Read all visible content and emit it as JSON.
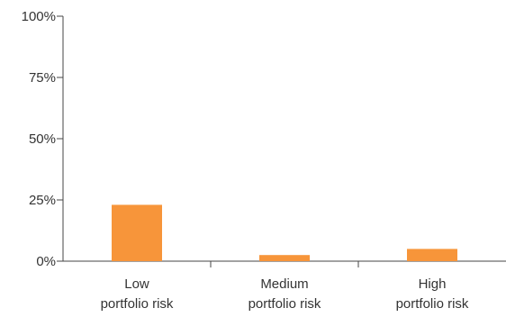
{
  "chart_data": {
    "type": "bar",
    "title": "",
    "xlabel": "",
    "ylabel": "",
    "categories": [
      [
        "Low",
        "portfolio risk"
      ],
      [
        "Medium",
        "portfolio risk"
      ],
      [
        "High",
        "portfolio risk"
      ]
    ],
    "values": [
      23,
      2.5,
      5
    ],
    "ylim": [
      0,
      100
    ],
    "yticks": [
      {
        "value": 0,
        "label": "0%"
      },
      {
        "value": 25,
        "label": "25%"
      },
      {
        "value": 50,
        "label": "50%"
      },
      {
        "value": 75,
        "label": "75%"
      },
      {
        "value": 100,
        "label": "100%"
      }
    ],
    "grid": false,
    "legend": "none",
    "colors": {
      "bar": "#F7953A",
      "axis": "#444444",
      "text": "#333333"
    }
  }
}
